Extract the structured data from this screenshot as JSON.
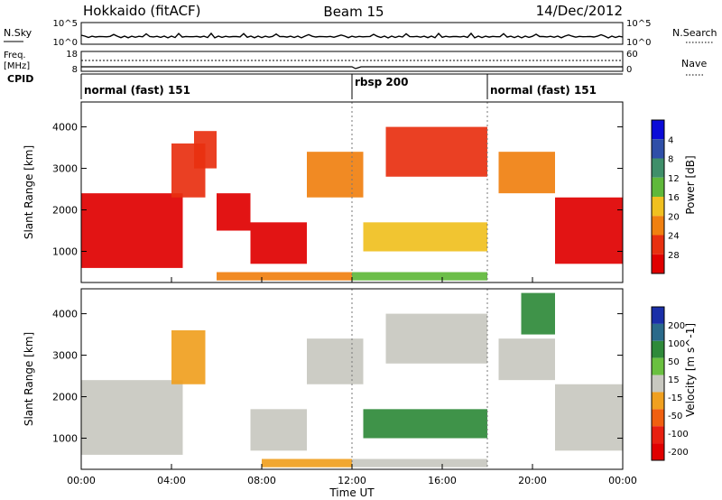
{
  "header": {
    "station": "Hokkaido (fitACF)",
    "beam": "Beam 15",
    "date": "14/Dec/2012"
  },
  "strip": {
    "nsky_label": "N.Sky",
    "nsky_ticks": [
      "10^5",
      "10^0"
    ],
    "nsearch_label": "N.Search",
    "freq_label_1": "Freq.",
    "freq_label_2": "[MHz]",
    "freq_ticks": [
      "18",
      "8"
    ],
    "nave_label": "Nave",
    "nave_ticks": [
      "60",
      "0"
    ],
    "right_ticks_top": [
      "10^5",
      "10^0"
    ],
    "cpid_label": "CPID",
    "modes": [
      "normal (fast) 151",
      "rbsp 200",
      "normal (fast) 151"
    ]
  },
  "power_panel": {
    "ylabel": "Slant Range [km]",
    "yticks": [
      "1000",
      "2000",
      "3000",
      "4000"
    ],
    "colorbar_label": "Power [dB]",
    "colorbar_ticks": [
      "4",
      "8",
      "12",
      "16",
      "20",
      "24",
      "28"
    ],
    "colors": [
      "#0b0bd8",
      "#2f4fa8",
      "#3f8f6a",
      "#5fb83a",
      "#f0c020",
      "#f08010",
      "#e83010",
      "#e00000"
    ]
  },
  "velocity_panel": {
    "ylabel": "Slant Range [km]",
    "yticks": [
      "1000",
      "2000",
      "3000",
      "4000"
    ],
    "colorbar_label": "Velocity [m s^-1]",
    "colorbar_ticks": [
      "200",
      "100",
      "50",
      "15",
      "-15",
      "-50",
      "-100",
      "-200"
    ],
    "colors": [
      "#1a2fa8",
      "#2a6a8a",
      "#2f8a3a",
      "#6ac040",
      "#c8c8c0",
      "#f0a020",
      "#f06010",
      "#e82010",
      "#e00000"
    ]
  },
  "x_axis": {
    "ticks": [
      "00:00",
      "04:00",
      "08:00",
      "12:00",
      "16:00",
      "20:00",
      "00:00"
    ],
    "label": "Time UT"
  },
  "chart_data": {
    "type": "heatmap",
    "x_unit": "hours UT",
    "xlim": [
      0,
      24
    ],
    "ylim": [
      250,
      4600
    ],
    "mode_changes_hours": [
      12,
      18
    ],
    "power_dB": [
      {
        "t0": 0.0,
        "t1": 4.5,
        "r0": 600,
        "r1": 2400,
        "value": 28
      },
      {
        "t0": 4.0,
        "t1": 5.5,
        "r0": 2300,
        "r1": 3600,
        "value": 26
      },
      {
        "t0": 5.0,
        "t1": 6.0,
        "r0": 3000,
        "r1": 3900,
        "value": 24
      },
      {
        "t0": 6.0,
        "t1": 7.5,
        "r0": 1500,
        "r1": 2400,
        "value": 28
      },
      {
        "t0": 7.5,
        "t1": 10.0,
        "r0": 700,
        "r1": 1700,
        "value": 28
      },
      {
        "t0": 10.0,
        "t1": 12.5,
        "r0": 2300,
        "r1": 3400,
        "value": 22
      },
      {
        "t0": 12.5,
        "t1": 18.0,
        "r0": 1000,
        "r1": 1700,
        "value": 16
      },
      {
        "t0": 13.5,
        "t1": 18.0,
        "r0": 2800,
        "r1": 4000,
        "value": 24
      },
      {
        "t0": 18.5,
        "t1": 21.0,
        "r0": 2400,
        "r1": 3400,
        "value": 22
      },
      {
        "t0": 21.0,
        "t1": 24.0,
        "r0": 700,
        "r1": 2300,
        "value": 28
      },
      {
        "t0": 6.0,
        "t1": 12.0,
        "r0": 300,
        "r1": 500,
        "value": 20
      },
      {
        "t0": 12.0,
        "t1": 18.0,
        "r0": 300,
        "r1": 500,
        "value": 12
      }
    ],
    "velocity_ms": [
      {
        "t0": 0.0,
        "t1": 4.5,
        "r0": 600,
        "r1": 2400,
        "value": 0
      },
      {
        "t0": 4.0,
        "t1": 5.5,
        "r0": 2300,
        "r1": 3600,
        "value": -50
      },
      {
        "t0": 7.5,
        "t1": 10.0,
        "r0": 700,
        "r1": 1700,
        "value": 0
      },
      {
        "t0": 10.0,
        "t1": 12.5,
        "r0": 2300,
        "r1": 3400,
        "value": 0
      },
      {
        "t0": 12.5,
        "t1": 18.0,
        "r0": 1000,
        "r1": 1700,
        "value": 50
      },
      {
        "t0": 13.5,
        "t1": 18.0,
        "r0": 2800,
        "r1": 4000,
        "value": 0
      },
      {
        "t0": 18.5,
        "t1": 21.0,
        "r0": 2400,
        "r1": 3400,
        "value": 0
      },
      {
        "t0": 19.5,
        "t1": 21.0,
        "r0": 3500,
        "r1": 4500,
        "value": 50
      },
      {
        "t0": 21.0,
        "t1": 24.0,
        "r0": 700,
        "r1": 2300,
        "value": 0
      },
      {
        "t0": 8.0,
        "t1": 12.0,
        "r0": 300,
        "r1": 500,
        "value": -50
      },
      {
        "t0": 12.0,
        "t1": 18.0,
        "r0": 300,
        "r1": 500,
        "value": -15
      }
    ]
  }
}
